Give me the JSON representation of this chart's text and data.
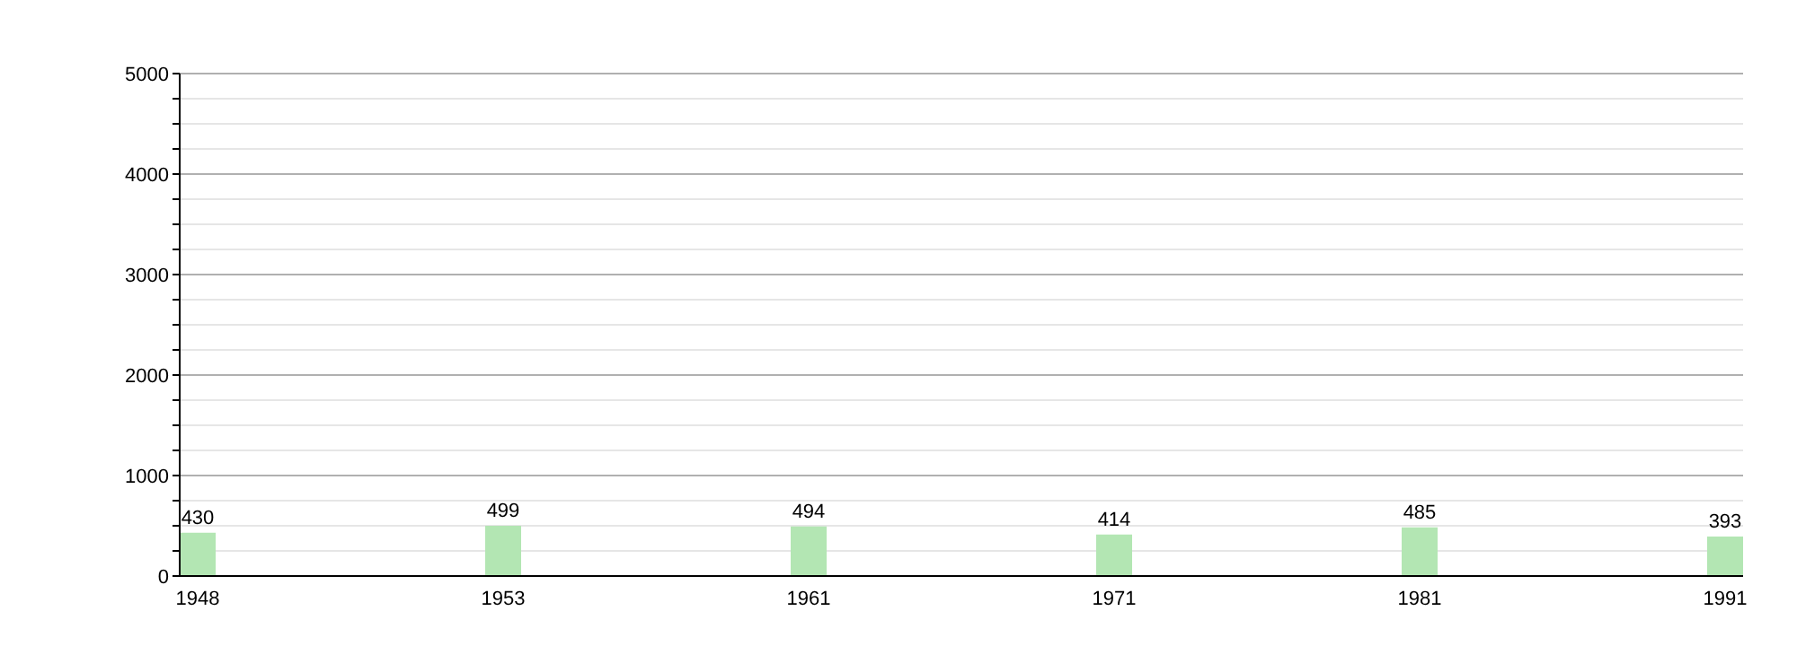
{
  "chart_data": {
    "type": "bar",
    "categories": [
      "1948",
      "1953",
      "1961",
      "1971",
      "1981",
      "1991"
    ],
    "values": [
      430,
      499,
      494,
      414,
      485,
      393
    ],
    "color": "#b3e6b3",
    "ylim": [
      0,
      5000
    ],
    "yticks": [
      0,
      {
        "value": 250,
        "label": null
      },
      {
        "value": 500,
        "label": null
      },
      {
        "value": 750,
        "label": null
      },
      1000,
      {
        "value": 1250,
        "label": null
      },
      {
        "value": 1500,
        "label": null
      },
      {
        "value": 1750,
        "label": null
      },
      2000,
      {
        "value": 2250,
        "label": null
      },
      {
        "value": 2500,
        "label": null
      },
      {
        "value": 2750,
        "label": null
      },
      3000,
      {
        "value": 3250,
        "label": null
      },
      {
        "value": 3500,
        "label": null
      },
      {
        "value": 3750,
        "label": null
      },
      4000,
      {
        "value": 4250,
        "label": null
      },
      {
        "value": 4500,
        "label": null
      },
      {
        "value": 4750,
        "label": null
      },
      5000
    ],
    "grid": true,
    "data_labels": true,
    "legend": false
  }
}
